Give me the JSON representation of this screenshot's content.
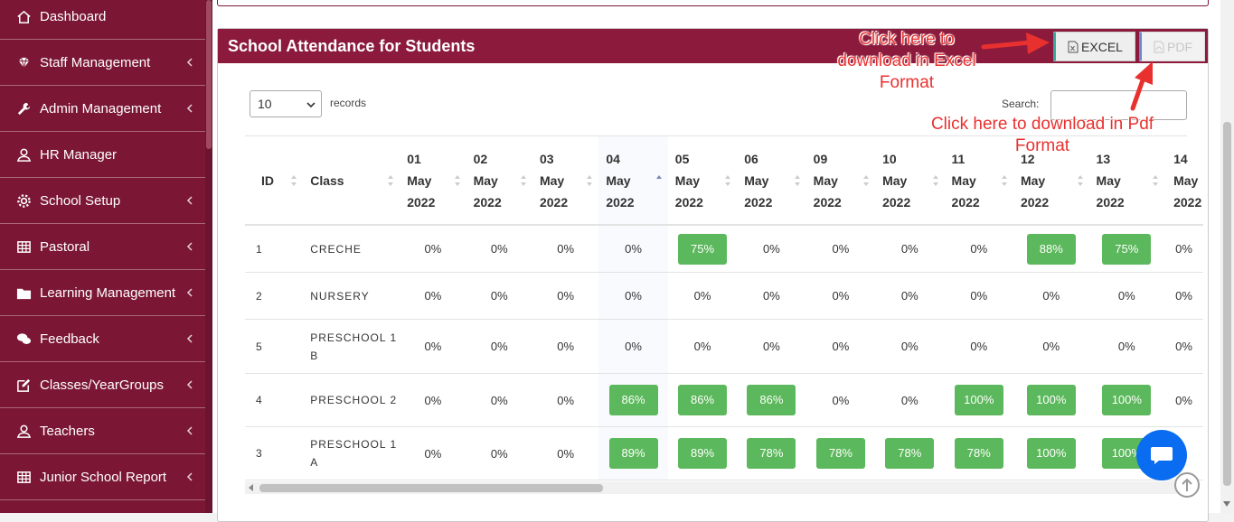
{
  "sidebar": {
    "items": [
      {
        "label": "Dashboard",
        "icon": "home-icon",
        "chevron": false
      },
      {
        "label": "Staff Management",
        "icon": "diamond-icon",
        "chevron": true
      },
      {
        "label": "Admin Management",
        "icon": "wrench-icon",
        "chevron": true
      },
      {
        "label": "HR Manager",
        "icon": "user-icon",
        "chevron": false
      },
      {
        "label": "School Setup",
        "icon": "gear-icon",
        "chevron": true
      },
      {
        "label": "Pastoral",
        "icon": "table-icon",
        "chevron": true
      },
      {
        "label": "Learning Management",
        "icon": "folder-icon",
        "chevron": true
      },
      {
        "label": "Feedback",
        "icon": "comments-icon",
        "chevron": true
      },
      {
        "label": "Classes/YearGroups",
        "icon": "edit-icon",
        "chevron": true
      },
      {
        "label": "Teachers",
        "icon": "user-icon",
        "chevron": true
      },
      {
        "label": "Junior School Report",
        "icon": "table-icon",
        "chevron": true
      }
    ]
  },
  "panel": {
    "title": "School Attendance for Students",
    "excel_label": "EXCEL",
    "pdf_label": "PDF"
  },
  "controls": {
    "length_value": "10",
    "records_label": "records",
    "search_label": "Search:",
    "search_value": ""
  },
  "table": {
    "columns": [
      {
        "label": "ID"
      },
      {
        "label": "Class"
      },
      {
        "day": "01",
        "month": "May",
        "year": "2022"
      },
      {
        "day": "02",
        "month": "May",
        "year": "2022"
      },
      {
        "day": "03",
        "month": "May",
        "year": "2022"
      },
      {
        "day": "04",
        "month": "May",
        "year": "2022"
      },
      {
        "day": "05",
        "month": "May",
        "year": "2022"
      },
      {
        "day": "06",
        "month": "May",
        "year": "2022"
      },
      {
        "day": "09",
        "month": "May",
        "year": "2022"
      },
      {
        "day": "10",
        "month": "May",
        "year": "2022"
      },
      {
        "day": "11",
        "month": "May",
        "year": "2022"
      },
      {
        "day": "12",
        "month": "May",
        "year": "2022"
      },
      {
        "day": "13",
        "month": "May",
        "year": "2022"
      },
      {
        "day": "14",
        "month": "May",
        "year": "2022"
      }
    ],
    "rows": [
      {
        "id": "1",
        "cls": "CRECHE",
        "cells": [
          "0%",
          "0%",
          "0%",
          "0%",
          "75%",
          "0%",
          "0%",
          "0%",
          "0%",
          "88%",
          "75%",
          "0%"
        ]
      },
      {
        "id": "2",
        "cls": "NURSERY",
        "cells": [
          "0%",
          "0%",
          "0%",
          "0%",
          "0%",
          "0%",
          "0%",
          "0%",
          "0%",
          "0%",
          "0%",
          "0%"
        ]
      },
      {
        "id": "5",
        "cls": "PRESCHOOL 1 B",
        "cells": [
          "0%",
          "0%",
          "0%",
          "0%",
          "0%",
          "0%",
          "0%",
          "0%",
          "0%",
          "0%",
          "0%",
          "0%"
        ]
      },
      {
        "id": "4",
        "cls": "PRESCHOOL 2",
        "cells": [
          "0%",
          "0%",
          "0%",
          "86%",
          "86%",
          "86%",
          "0%",
          "0%",
          "100%",
          "100%",
          "100%",
          "0%"
        ]
      },
      {
        "id": "3",
        "cls": "PRESCHOOL 1 A",
        "cells": [
          "0%",
          "0%",
          "0%",
          "89%",
          "89%",
          "78%",
          "78%",
          "78%",
          "78%",
          "100%",
          "100%",
          ""
        ]
      }
    ]
  },
  "annotations": {
    "excel_note": "Click here to download in Excel Format",
    "pdf_note": "Click here to download in Pdf Format"
  },
  "colors": {
    "sidebar": "#7b1734",
    "panel_header": "#8b1a3c",
    "pill_green": "#5cb85c",
    "annotation_red": "#e8312f",
    "chat_blue": "#0a6cf0"
  }
}
